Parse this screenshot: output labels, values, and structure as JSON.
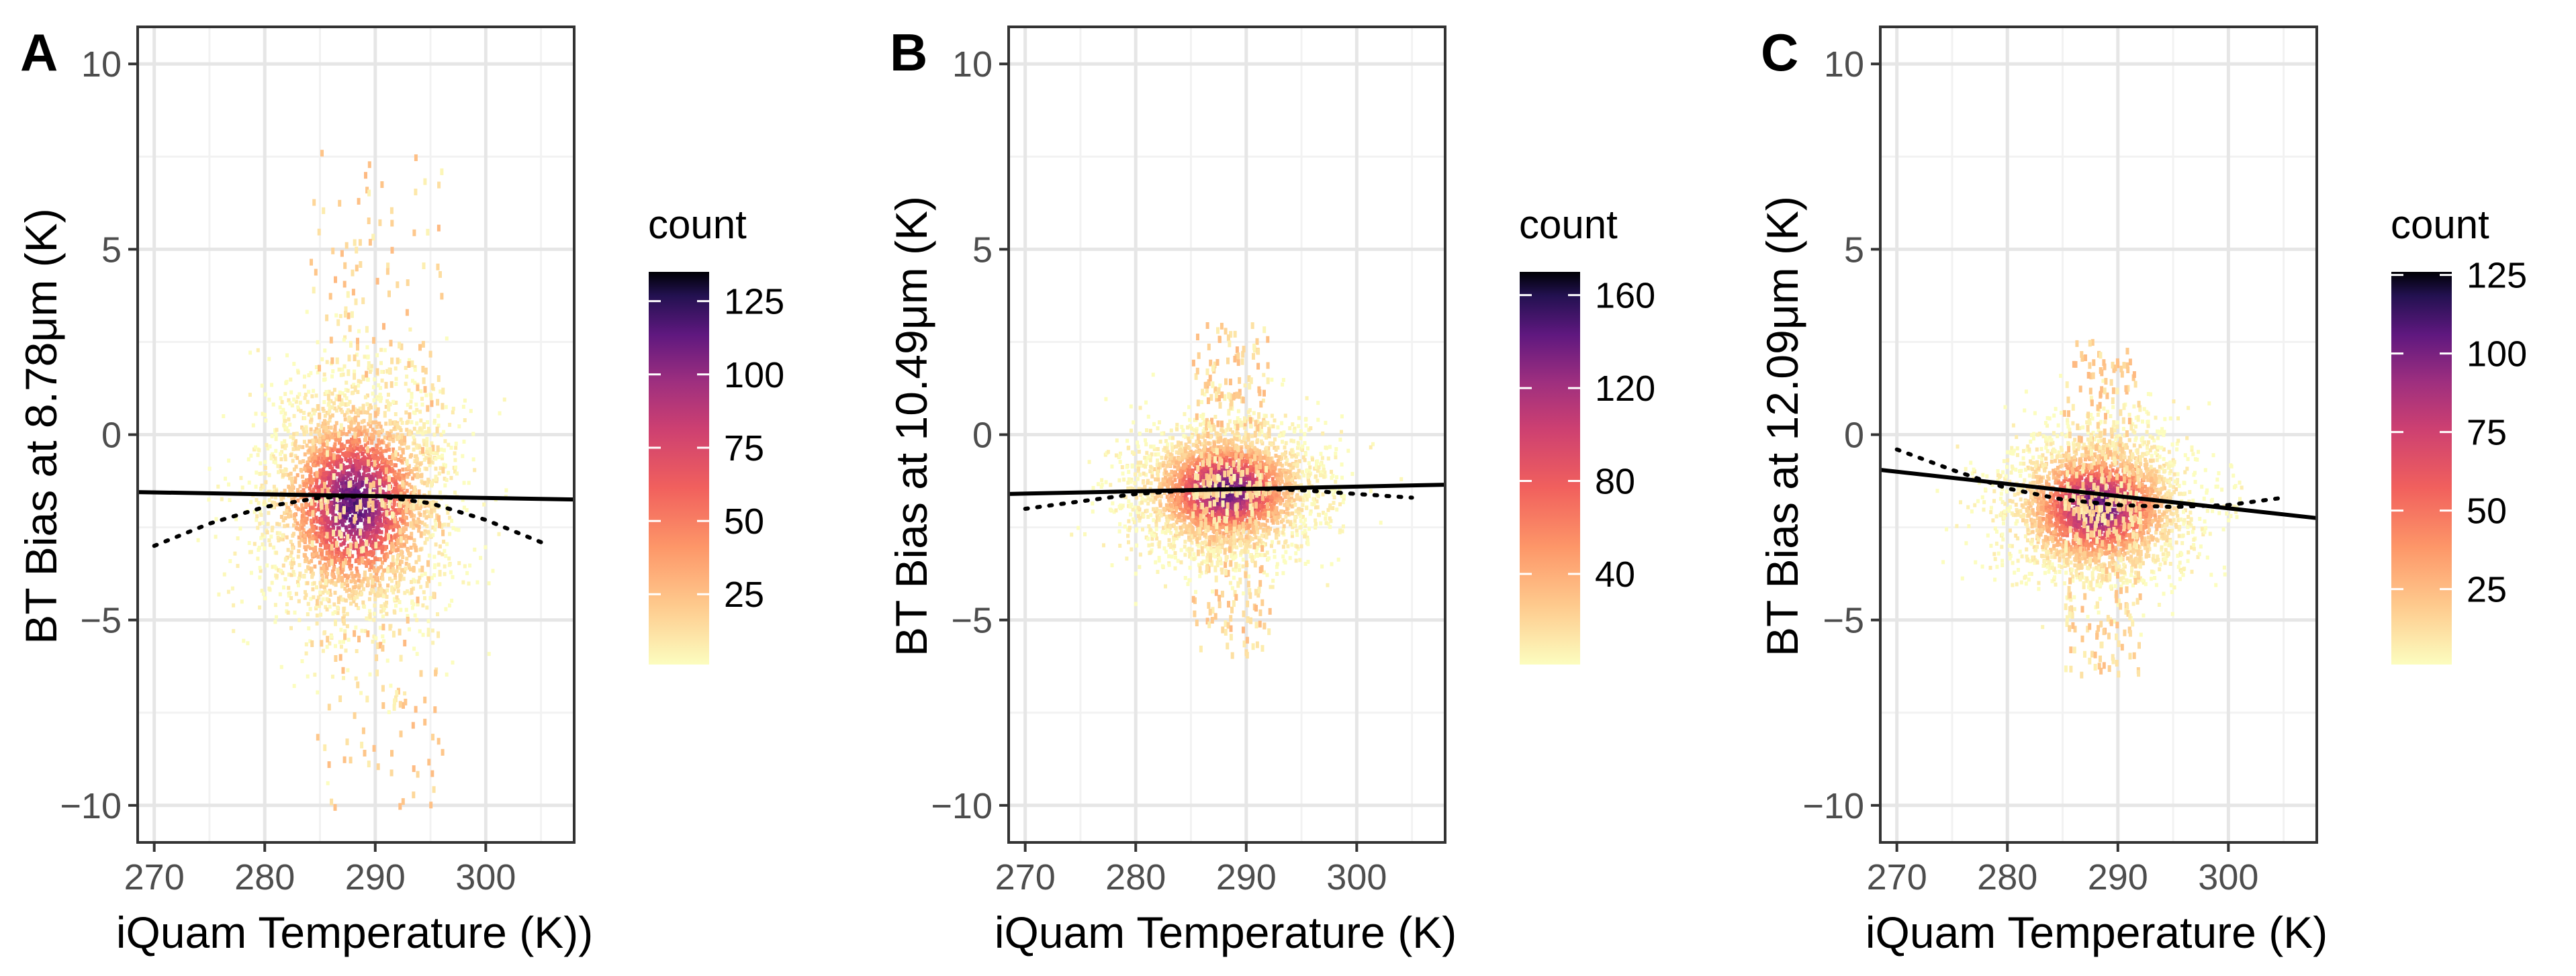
{
  "figure": {
    "panels": [
      {
        "tag": "A",
        "xlabel": "iQuam Temperature (K))",
        "ylabel": "BT Bias at 8.78μm (K)",
        "legend": {
          "title": "count",
          "max": 135,
          "ticks": [
            25,
            50,
            75,
            100,
            125
          ]
        }
      },
      {
        "tag": "B",
        "xlabel": "iQuam Temperature (K)",
        "ylabel": "BT Bias at 10.49μm (K)",
        "legend": {
          "title": "count",
          "max": 170,
          "ticks": [
            40,
            80,
            120,
            160
          ]
        }
      },
      {
        "tag": "C",
        "xlabel": "iQuam Temperature (K)",
        "ylabel": "BT Bias at 12.09μm (K)",
        "legend": {
          "title": "count",
          "max": 126,
          "ticks": [
            25,
            50,
            75,
            100,
            125
          ]
        }
      }
    ]
  },
  "chart_data": [
    {
      "type": "heatmap",
      "title": "A",
      "xlabel": "iQuam Temperature (K))",
      "ylabel": "BT Bias at 8.78μm (K)",
      "xlim": [
        268.5,
        308
      ],
      "ylim": [
        -11,
        11
      ],
      "xticks": [
        270,
        280,
        290,
        300
      ],
      "yticks": [
        -10,
        -5,
        0,
        5,
        10
      ],
      "grid": true,
      "density": {
        "center": [
          288,
          -1.8
        ],
        "spread_x": 4.2,
        "spread_y": 1.6,
        "tail_y": 9.5,
        "tail_x_range": [
          284,
          296
        ],
        "peak_count": 130
      },
      "series": [
        {
          "name": "linear fit",
          "style": "solid",
          "x": [
            268.5,
            308
          ],
          "y": [
            -1.55,
            -1.75
          ]
        },
        {
          "name": "nonlinear fit",
          "style": "dotted",
          "x": [
            270,
            275,
            280,
            285,
            290,
            295,
            300,
            305
          ],
          "y": [
            -3.0,
            -2.4,
            -1.95,
            -1.7,
            -1.65,
            -1.85,
            -2.3,
            -2.9
          ]
        }
      ],
      "legend": {
        "title": "count",
        "palette": "magma",
        "range": [
          1,
          135
        ],
        "ticks": [
          25,
          50,
          75,
          100,
          125
        ]
      }
    },
    {
      "type": "heatmap",
      "title": "B",
      "xlabel": "iQuam Temperature (K)",
      "ylabel": "BT Bias at 10.49μm (K)",
      "xlim": [
        268.5,
        308
      ],
      "ylim": [
        -11,
        11
      ],
      "xticks": [
        270,
        280,
        290,
        300
      ],
      "yticks": [
        -10,
        -5,
        0,
        5,
        10
      ],
      "grid": true,
      "density": {
        "center": [
          288,
          -1.45
        ],
        "spread_x": 4.2,
        "spread_y": 0.9,
        "tail_y": 4.5,
        "tail_x_range": [
          285,
          292
        ],
        "peak_count": 165
      },
      "series": [
        {
          "name": "linear fit",
          "style": "solid",
          "x": [
            268.5,
            308
          ],
          "y": [
            -1.6,
            -1.35
          ]
        },
        {
          "name": "nonlinear fit",
          "style": "dotted",
          "x": [
            270,
            275,
            280,
            285,
            290,
            295,
            300,
            305
          ],
          "y": [
            -2.0,
            -1.8,
            -1.6,
            -1.5,
            -1.45,
            -1.5,
            -1.6,
            -1.7
          ]
        }
      ],
      "legend": {
        "title": "count",
        "palette": "magma",
        "range": [
          1,
          170
        ],
        "ticks": [
          40,
          80,
          120,
          160
        ]
      }
    },
    {
      "type": "heatmap",
      "title": "C",
      "xlabel": "iQuam Temperature (K)",
      "ylabel": "BT Bias at 12.09μm (K)",
      "xlim": [
        268.5,
        308
      ],
      "ylim": [
        -11,
        11
      ],
      "xticks": [
        270,
        280,
        290,
        300
      ],
      "yticks": [
        -10,
        -5,
        0,
        5,
        10
      ],
      "grid": true,
      "density": {
        "center": [
          288,
          -1.9
        ],
        "spread_x": 4.2,
        "spread_y": 1.0,
        "tail_y": 4.5,
        "tail_x_range": [
          285,
          292
        ],
        "peak_count": 124
      },
      "series": [
        {
          "name": "linear fit",
          "style": "solid",
          "x": [
            268.5,
            308
          ],
          "y": [
            -0.95,
            -2.25
          ]
        },
        {
          "name": "nonlinear fit",
          "style": "dotted",
          "x": [
            270,
            275,
            280,
            285,
            290,
            295,
            300,
            305
          ],
          "y": [
            -0.4,
            -0.95,
            -1.45,
            -1.75,
            -1.9,
            -1.95,
            -1.9,
            -1.7
          ]
        }
      ],
      "legend": {
        "title": "count",
        "palette": "magma",
        "range": [
          1,
          126
        ],
        "ticks": [
          25,
          50,
          75,
          100,
          125
        ]
      }
    }
  ]
}
